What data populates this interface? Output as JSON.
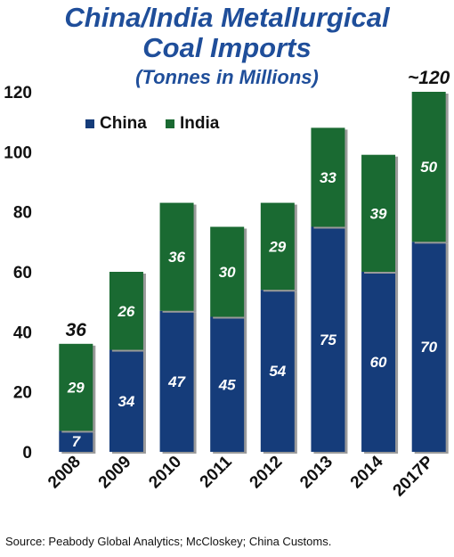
{
  "title_line1": "China/India Metallurgical",
  "title_line2": "Coal Imports",
  "subtitle": "(Tonnes in Millions)",
  "source": "Source: Peabody Global Analytics; McCloskey; China Customs.",
  "colors": {
    "china": "#153c7a",
    "india": "#1a6a32",
    "title": "#1f4e9a"
  },
  "chart_data": {
    "type": "bar",
    "stacked": true,
    "categories": [
      "2008",
      "2009",
      "2010",
      "2011",
      "2012",
      "2013",
      "2014",
      "2017P"
    ],
    "series": [
      {
        "name": "China",
        "values": [
          7,
          34,
          47,
          45,
          54,
          75,
          60,
          70
        ]
      },
      {
        "name": "India",
        "values": [
          29,
          26,
          36,
          30,
          29,
          33,
          39,
          50
        ]
      }
    ],
    "total_labels": {
      "2008": "36",
      "2017P": "~120"
    },
    "ylim": [
      0,
      120
    ],
    "yticks": [
      0,
      20,
      40,
      60,
      80,
      100,
      120
    ],
    "grid": false,
    "legend_position": "top-left"
  }
}
